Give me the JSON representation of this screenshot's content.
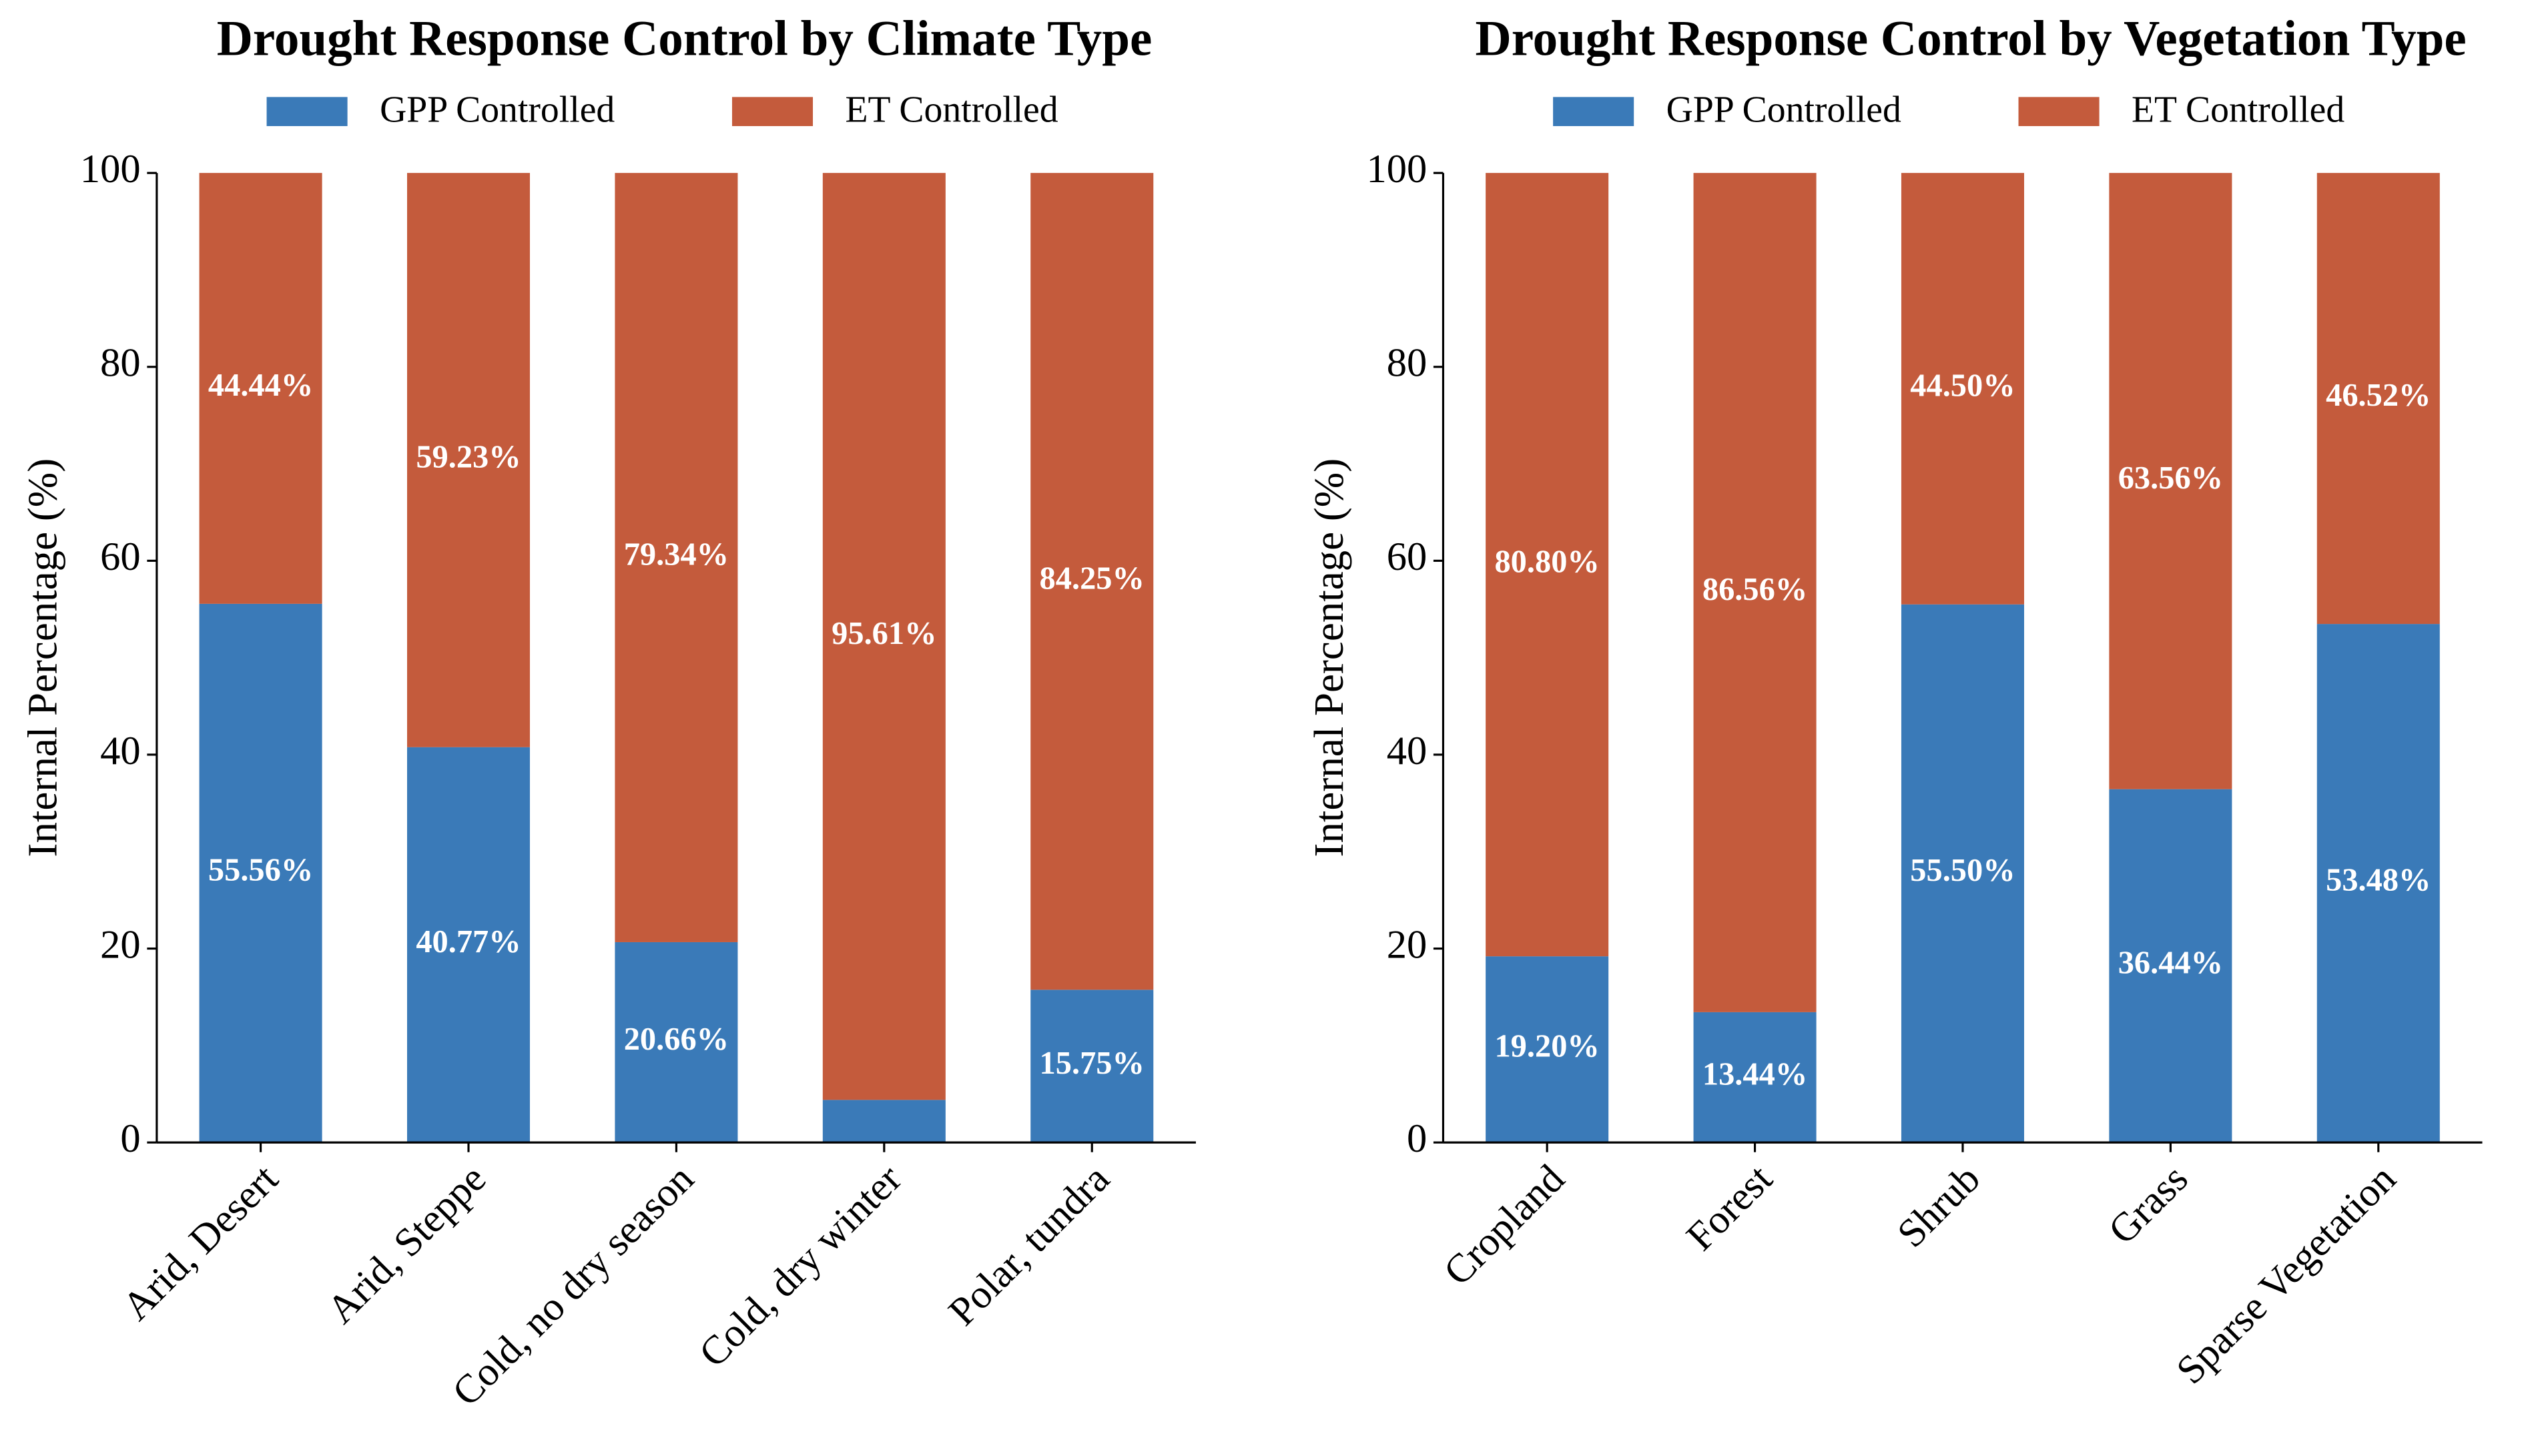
{
  "chart_data": [
    {
      "type": "stacked_bar",
      "title": "Drought Response Control by Climate Type",
      "y_label": "Internal Percentage (%)",
      "categories": [
        "Arid, Desert",
        "Arid, Steppe",
        "Cold, no dry season",
        "Cold, dry winter",
        "Polar, tundra"
      ],
      "series": [
        {
          "name": "GPP Controlled",
          "color": "#3a7ab8",
          "values": [
            55.56,
            40.77,
            20.66,
            4.39,
            15.75
          ],
          "value_labels": [
            "55.56%",
            "40.77%",
            "20.66%",
            null,
            "15.75%"
          ]
        },
        {
          "name": "ET Controlled",
          "color": "#c45b3c",
          "values": [
            44.44,
            59.23,
            79.34,
            95.61,
            84.25
          ],
          "value_labels": [
            "44.44%",
            "59.23%",
            "79.34%",
            "95.61%",
            "84.25%"
          ]
        }
      ],
      "ylim": [
        0,
        100
      ],
      "yticks": [
        0,
        20,
        40,
        60,
        80,
        100
      ],
      "grid": false,
      "legend": "top"
    },
    {
      "type": "stacked_bar",
      "title": "Drought Response Control by Vegetation Type",
      "y_label": "Internal Percentage (%)",
      "categories": [
        "Cropland",
        "Forest",
        "Shrub",
        "Grass",
        "Sparse Vegetation"
      ],
      "series": [
        {
          "name": "GPP Controlled",
          "color": "#3a7ab8",
          "values": [
            19.2,
            13.44,
            55.5,
            36.44,
            53.48
          ],
          "value_labels": [
            "19.20%",
            "13.44%",
            "55.50%",
            "36.44%",
            "53.48%"
          ]
        },
        {
          "name": "ET Controlled",
          "color": "#c45b3c",
          "values": [
            80.8,
            86.56,
            44.5,
            63.56,
            46.52
          ],
          "value_labels": [
            "80.80%",
            "86.56%",
            "44.50%",
            "63.56%",
            "46.52%"
          ]
        }
      ],
      "ylim": [
        0,
        100
      ],
      "yticks": [
        0,
        20,
        40,
        60,
        80,
        100
      ],
      "grid": false,
      "legend": "top"
    }
  ]
}
